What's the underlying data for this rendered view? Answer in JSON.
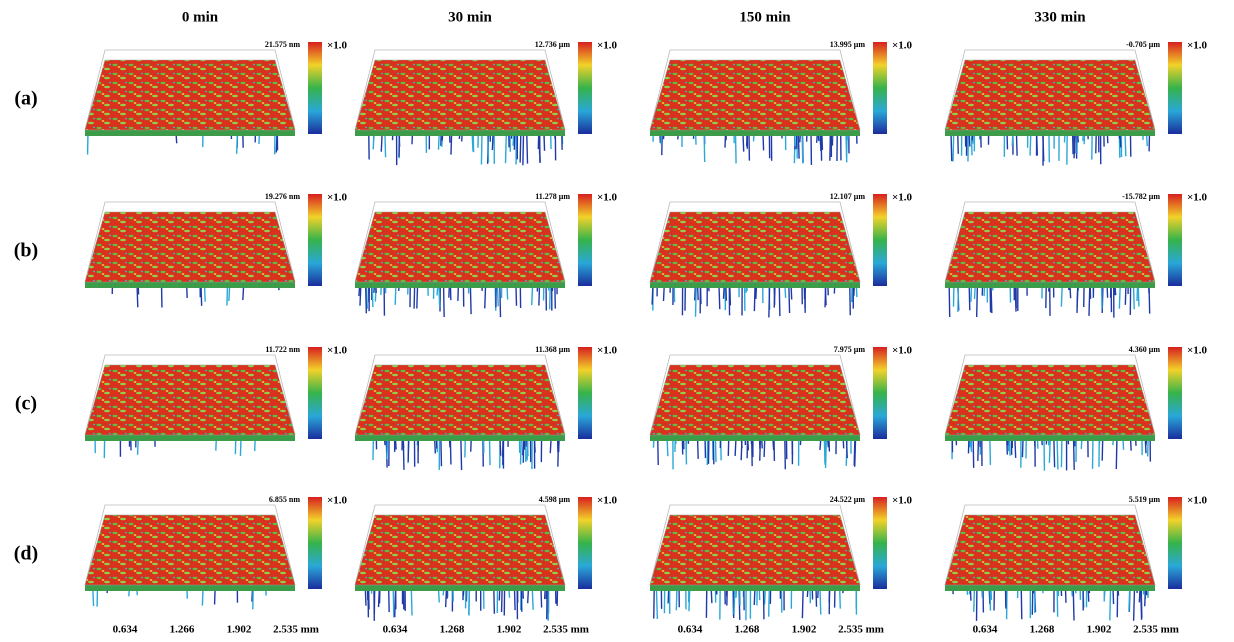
{
  "columns": [
    "0 min",
    "30 min",
    "150 min",
    "330 min"
  ],
  "rows": [
    {
      "label": "(a)",
      "panels": [
        {
          "max": "21.575 nm",
          "scale": "×1.0"
        },
        {
          "max": "12.736 μm",
          "scale": "×1.0"
        },
        {
          "max": "13.995 μm",
          "scale": "×1.0"
        },
        {
          "max": "-0.705 μm",
          "scale": "×1.0"
        }
      ]
    },
    {
      "label": "(b)",
      "panels": [
        {
          "max": "19.276 nm",
          "scale": "×1.0"
        },
        {
          "max": "11.278 μm",
          "scale": "×1.0"
        },
        {
          "max": "12.107 μm",
          "scale": "×1.0"
        },
        {
          "max": "-15.782 μm",
          "scale": "×1.0"
        }
      ]
    },
    {
      "label": "(c)",
      "panels": [
        {
          "max": "11.722 nm",
          "scale": "×1.0"
        },
        {
          "max": "11.368 μm",
          "scale": "×1.0"
        },
        {
          "max": "7.975 μm",
          "scale": "×1.0"
        },
        {
          "max": "4.360 μm",
          "scale": "×1.0"
        }
      ]
    },
    {
      "label": "(d)",
      "panels": [
        {
          "max": "6.855 nm",
          "scale": "×1.0"
        },
        {
          "max": "4.598 μm",
          "scale": "×1.0"
        },
        {
          "max": "24.522 μm",
          "scale": "×1.0"
        },
        {
          "max": "5.519 μm",
          "scale": "×1.0"
        }
      ]
    }
  ],
  "x_ticks": [
    [
      "0.634",
      "1.266",
      "1.902",
      "2.535 mm"
    ],
    [
      "0.634",
      "1.268",
      "1.902",
      "2.535 mm"
    ],
    [
      "0.634",
      "1.268",
      "1.902",
      "2.535 mm"
    ],
    [
      "0.634",
      "1.268",
      "1.902",
      "2.535 mm"
    ]
  ]
}
